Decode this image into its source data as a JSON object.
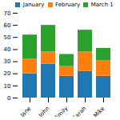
{
  "chart_data": {
    "type": "bar",
    "stacked": true,
    "categories": [
      "Jane",
      "John",
      "Emily",
      "Sarah",
      "Mike"
    ],
    "series": [
      {
        "name": "January",
        "color": "#1f77b4",
        "values": [
          20,
          28,
          18,
          22,
          18
        ]
      },
      {
        "name": "February",
        "color": "#ff7f0e",
        "values": [
          12,
          10,
          8,
          16,
          13
        ]
      },
      {
        "name": "March 1",
        "color": "#2ca02c",
        "values": [
          20,
          22,
          10,
          18,
          10
        ]
      }
    ],
    "ylim": [
      0,
      70
    ],
    "yticks": [
      0,
      10,
      20,
      30,
      40,
      50,
      60,
      70
    ],
    "legend": "upper right"
  }
}
